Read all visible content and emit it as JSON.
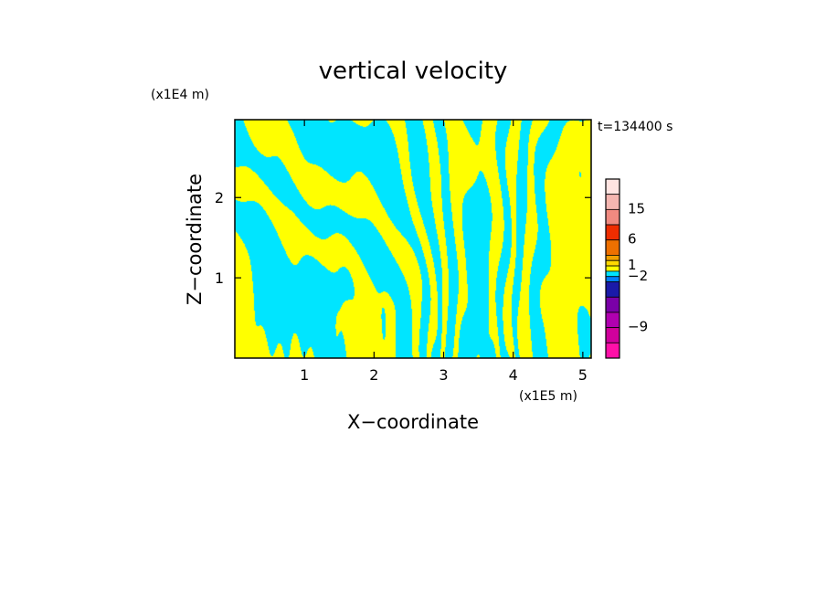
{
  "chart_data": {
    "type": "heatmap",
    "title": "vertical velocity",
    "xlabel": "X−coordinate",
    "ylabel": "Z−coordinate",
    "x_scale_label": "(x1E5 m)",
    "y_scale_label": "(x1E4 m)",
    "time_label": "t=134400 s",
    "xlim": [
      0,
      5.12
    ],
    "ylim": [
      0,
      2.97
    ],
    "x_ticks": [
      1,
      2,
      3,
      4,
      5
    ],
    "y_ticks": [
      1,
      2
    ],
    "x_tick_labels": [
      "1",
      "2",
      "3",
      "4",
      "5"
    ],
    "y_tick_labels": [
      "1",
      "2"
    ],
    "field_colors": {
      "negative": "#00e5ff",
      "positive": "#ffff00"
    },
    "colorbar": {
      "labels": [
        {
          "text": "15",
          "value": 15
        },
        {
          "text": "6",
          "value": 6
        },
        {
          "text": "1",
          "value": 1
        },
        {
          "text": "−2",
          "value": -2
        },
        {
          "text": "−9",
          "value": -9
        }
      ],
      "levels_top_to_bottom": [
        {
          "color": "#ffe4e1"
        },
        {
          "color": "#f4b6b0"
        },
        {
          "color": "#f08a80"
        },
        {
          "color": "#ee2d00"
        },
        {
          "color": "#ee7000"
        },
        {
          "color": "#f0a000"
        },
        {
          "color": "#ffd800"
        },
        {
          "color": "#ffff00"
        },
        {
          "color": "#00e5ff"
        },
        {
          "color": "#0080ff"
        },
        {
          "color": "#1a1aa8"
        },
        {
          "color": "#7a00a8"
        },
        {
          "color": "#b000b0"
        },
        {
          "color": "#d0009c"
        },
        {
          "color": "#ff10a8"
        }
      ]
    }
  }
}
